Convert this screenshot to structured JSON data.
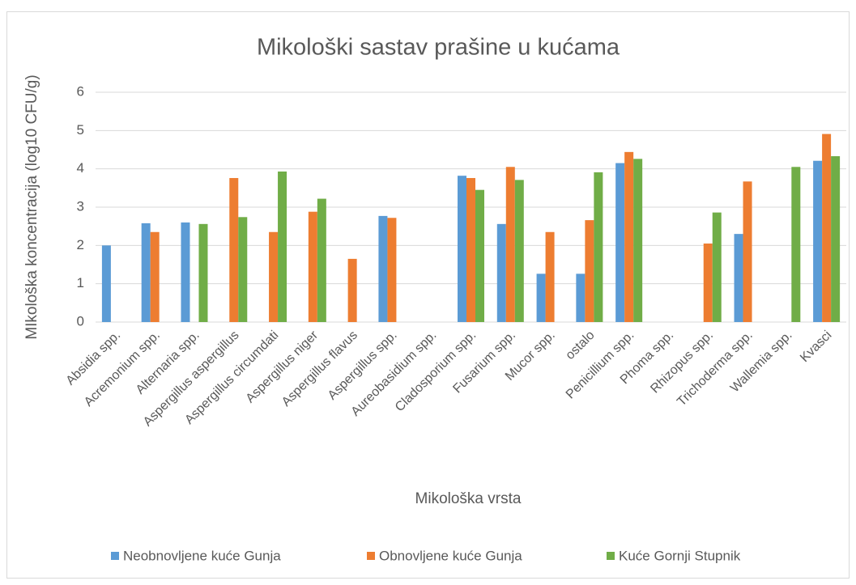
{
  "chart_data": {
    "type": "bar",
    "title": "Mikološki sastav prašine u kućama",
    "x_label": "Mikološka vrsta",
    "y_label": "MIkološka koncentracija (log10 CFU/g)",
    "categories": [
      "Absidia  spp.",
      "Acremonium  spp.",
      "Alternaria  spp.",
      "Aspergillus  aspergillus",
      "Aspergillus  circumdati",
      "Aspergillus  niger",
      "Aspergillus  flavus",
      "Aspergillus spp.",
      "Aureobasidium  spp.",
      "Cladosporium  spp.",
      "Fusarium  spp.",
      "Mucor  spp.",
      "ostalo",
      "Penicillium  spp.",
      "Phoma  spp.",
      "Rhizopus  spp.",
      "Trichoderma  spp.",
      "Wallemia  spp.",
      "Kvasci"
    ],
    "series": [
      {
        "name": "Neobnovljene kuće Gunja",
        "color": "#5b9bd5",
        "values": [
          2.0,
          2.58,
          2.6,
          null,
          null,
          null,
          null,
          2.77,
          null,
          3.82,
          2.56,
          1.26,
          1.26,
          4.15,
          null,
          null,
          2.3,
          null,
          4.21
        ]
      },
      {
        "name": "Obnovljene kuće Gunja",
        "color": "#ed7d31",
        "values": [
          null,
          2.35,
          null,
          3.76,
          2.35,
          2.88,
          1.65,
          2.72,
          null,
          3.76,
          4.05,
          2.35,
          2.66,
          4.44,
          null,
          2.05,
          3.67,
          null,
          4.91
        ]
      },
      {
        "name": "Kuće Gornji Stupnik",
        "color": "#70ad47",
        "values": [
          null,
          null,
          2.56,
          2.74,
          3.93,
          3.22,
          null,
          null,
          null,
          3.45,
          3.71,
          null,
          3.91,
          4.26,
          null,
          2.86,
          null,
          4.05,
          4.33
        ]
      }
    ],
    "ylim": [
      0,
      6
    ],
    "yticks": [
      0,
      1,
      2,
      3,
      4,
      5,
      6
    ],
    "grid": true,
    "legend": "bottom"
  }
}
